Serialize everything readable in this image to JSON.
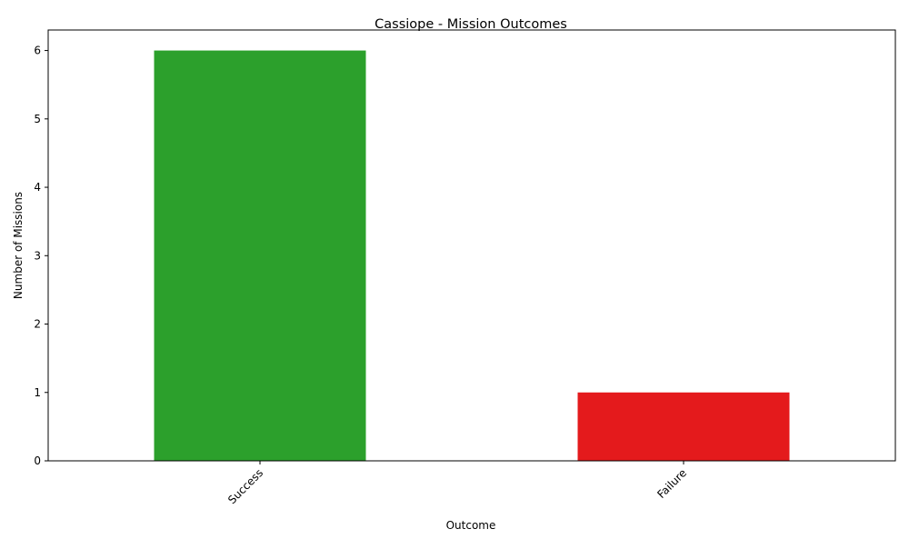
{
  "chart_data": {
    "type": "bar",
    "title": "Cassiope - Mission Outcomes",
    "xlabel": "Outcome",
    "ylabel": "Number of Missions",
    "categories": [
      "Success",
      "Failure"
    ],
    "values": [
      6,
      1
    ],
    "colors": [
      "#2ca02c",
      "#e41a1c"
    ],
    "ylim": [
      0,
      6.3
    ],
    "yticks": [
      "0",
      "1",
      "2",
      "3",
      "4",
      "5",
      "6"
    ],
    "xtick_rotation": "45 degrees",
    "grid": false,
    "legend": "none"
  }
}
